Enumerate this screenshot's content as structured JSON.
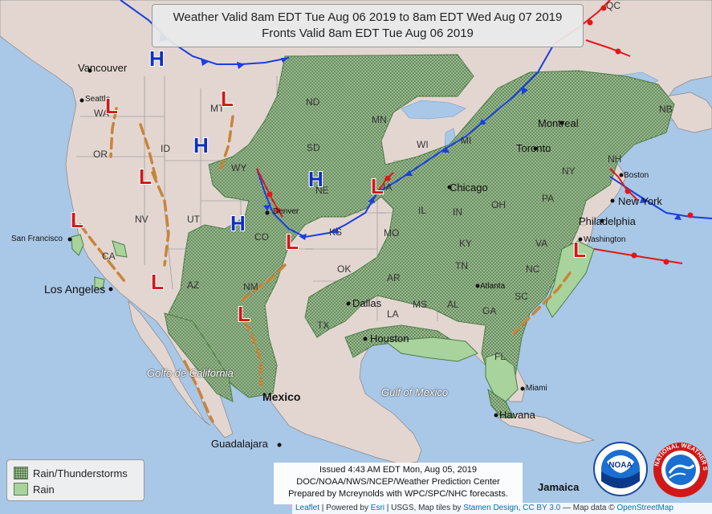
{
  "header": {
    "line1": "Weather Valid 8am EDT Tue Aug 06 2019 to 8am EDT Wed Aug 07 2019",
    "line2": "Fronts Valid 8am EDT Tue Aug 06 2019"
  },
  "legend": {
    "items": [
      {
        "label": "Rain/Thunderstorms"
      },
      {
        "label": "Rain"
      }
    ]
  },
  "issued": {
    "line1": "Issued 4:43 AM EDT Mon, Aug 05, 2019",
    "line2": "DOC/NOAA/NWS/NCEP/Weather Prediction Center",
    "line3": "Prepared by Mcreynolds with WPC/SPC/NHC forecasts."
  },
  "attribution": {
    "leaflet": "Leaflet",
    "powered": " | Powered by ",
    "esri": "Esri",
    "rest": " | USGS, Map tiles by ",
    "stamen": "Stamen Design",
    "comma": ", ",
    "cc": "CC BY 3.0",
    "mapdata": " — Map data © ",
    "osm": "OpenStreetMap"
  },
  "logos": {
    "noaa": "NOAA",
    "nws": "NATIONAL WEATHER SERVICE"
  },
  "colors": {
    "water": "#a9c7e6",
    "land": "#e3d6d1",
    "storm_fill": "#9ab98e",
    "rain_fill": "#a8d39c",
    "cold_front": "#1a3fe0",
    "warm_front": "#e01818",
    "trough": "#c8843a",
    "high": "#1030c0",
    "low": "#d01818"
  },
  "states": [
    "WA",
    "OR",
    "ID",
    "MT",
    "WY",
    "NV",
    "CA",
    "UT",
    "CO",
    "AZ",
    "NM",
    "ND",
    "SD",
    "NE",
    "KS",
    "OK",
    "TX",
    "MN",
    "IA",
    "MO",
    "AR",
    "LA",
    "WI",
    "IL",
    "IN",
    "KY",
    "TN",
    "MS",
    "AL",
    "GA",
    "SC",
    "NC",
    "VA",
    "PA",
    "NY",
    "OH",
    "MI",
    "NH",
    "NB",
    "QC",
    "FL"
  ],
  "cities": [
    "Vancouver",
    "Seattle",
    "San Francisco",
    "Los Angeles",
    "Denver",
    "Dallas",
    "Houston",
    "Chicago",
    "Toronto",
    "Montreal",
    "Boston",
    "New York",
    "Philadelphia",
    "Washington",
    "Atlanta",
    "Miami",
    "Havana",
    "Jamaica",
    "Mexico",
    "Guadalajara"
  ],
  "seas": [
    "Golfo de California",
    "Gulf of Mexico"
  ],
  "pressure_centers": {
    "H": "H",
    "L": "L"
  }
}
